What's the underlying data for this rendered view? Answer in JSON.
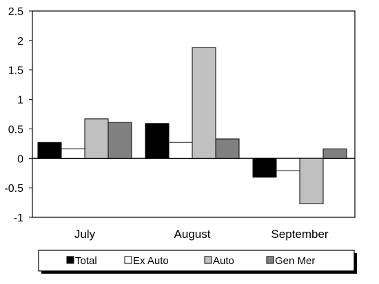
{
  "chart_data": {
    "type": "bar",
    "categories": [
      "July",
      "August",
      "September"
    ],
    "series": [
      {
        "name": "Total",
        "values": [
          0.27,
          0.59,
          -0.32
        ],
        "color": "#000000"
      },
      {
        "name": "Ex Auto",
        "values": [
          0.16,
          0.27,
          -0.21
        ],
        "color": "#ffffff"
      },
      {
        "name": "Auto",
        "values": [
          0.67,
          1.88,
          -0.77
        ],
        "color": "#c0c0c0"
      },
      {
        "name": "Gen Mer",
        "values": [
          0.61,
          0.33,
          0.16
        ],
        "color": "#808080"
      }
    ],
    "yticks": [
      "2.5",
      "2",
      "1.5",
      "1",
      "0.5",
      "0",
      "-0.5",
      "-1"
    ],
    "ylim": [
      -1,
      2.5
    ],
    "grid": false,
    "legend_position": "bottom",
    "title": "",
    "xlabel": "",
    "ylabel": ""
  }
}
